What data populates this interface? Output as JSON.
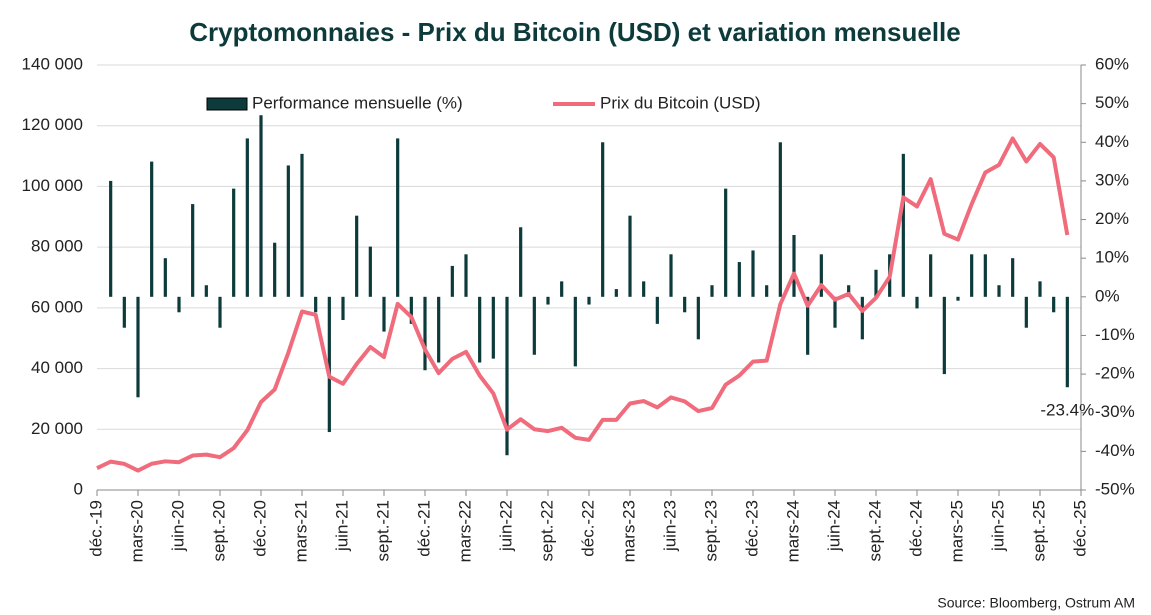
{
  "chart_data": {
    "type": "bar-line",
    "title": "Cryptomonnaies - Prix du Bitcoin (USD) et variation mensuelle",
    "source": "Source: Bloomberg,  Ostrum AM",
    "categories": [
      "déc.-19",
      null,
      null,
      "mars-20",
      null,
      null,
      "juin-20",
      null,
      null,
      "sept.-20",
      null,
      null,
      "déc.-20",
      null,
      null,
      "mars-21",
      null,
      null,
      "juin-21",
      null,
      null,
      "sept.-21",
      null,
      null,
      "déc.-21",
      null,
      null,
      "mars-22",
      null,
      null,
      "juin-22",
      null,
      null,
      "sept.-22",
      null,
      null,
      "déc.-22",
      null,
      null,
      "mars-23",
      null,
      null,
      "juin-23",
      null,
      null,
      "sept.-23",
      null,
      null,
      "déc.-23",
      null,
      null,
      "mars-24",
      null,
      null,
      "juin-24",
      null,
      null,
      "sept.-24",
      null,
      null,
      "déc.-24",
      null,
      null,
      "mars-25",
      null,
      null,
      "juin-25",
      null,
      null,
      "sept.-25",
      null,
      null,
      "déc.-25"
    ],
    "series": [
      {
        "name": "Performance mensuelle (%)",
        "type": "bar",
        "axis": "y2",
        "color": "#0d3b3b",
        "values": [
          null,
          30,
          -8,
          -26,
          35,
          10,
          -4,
          24,
          3,
          -8,
          28,
          41,
          47,
          14,
          34,
          37,
          -4,
          -35,
          -6,
          21,
          13,
          -9,
          41,
          -7,
          -19,
          -17,
          8,
          11,
          -17,
          -16,
          -41,
          18,
          -15,
          -2,
          4,
          -18,
          -2,
          40,
          2,
          21,
          4,
          -7,
          11,
          -4,
          -11,
          3,
          28,
          9,
          12,
          3,
          40,
          16,
          -15,
          11,
          -8,
          3,
          -11,
          7,
          11,
          37,
          -3,
          11,
          -20,
          -1,
          11,
          11,
          3,
          10,
          -8,
          4,
          -4,
          -23.4,
          null
        ],
        "value_labels": [
          null,
          null,
          null,
          null,
          null,
          null,
          null,
          null,
          null,
          null,
          null,
          null,
          null,
          null,
          null,
          null,
          null,
          null,
          null,
          null,
          null,
          null,
          null,
          null,
          null,
          null,
          null,
          null,
          null,
          null,
          null,
          null,
          null,
          null,
          null,
          null,
          null,
          null,
          null,
          null,
          null,
          null,
          null,
          null,
          null,
          null,
          null,
          null,
          null,
          null,
          null,
          null,
          null,
          null,
          null,
          null,
          null,
          null,
          null,
          null,
          null,
          null,
          null,
          null,
          null,
          null,
          null,
          null,
          null,
          null,
          null,
          "-23.4%",
          null
        ]
      },
      {
        "name": "Prix du Bitcoin (USD)",
        "type": "line",
        "color": "#f06b7c",
        "values": [
          7200,
          9350,
          8600,
          6400,
          8650,
          9450,
          9150,
          11350,
          11650,
          10800,
          13800,
          19700,
          29000,
          33100,
          45200,
          58800,
          57700,
          37300,
          35000,
          41500,
          47100,
          43800,
          61300,
          57000,
          46300,
          38500,
          43200,
          45500,
          37700,
          31800,
          19900,
          23300,
          20000,
          19400,
          20500,
          17200,
          16500,
          23100,
          23100,
          28500,
          29300,
          27200,
          30500,
          29200,
          26000,
          27000,
          34700,
          37700,
          42300,
          42600,
          61200,
          71300,
          60700,
          67500,
          62700,
          64600,
          59000,
          63300,
          70200,
          96400,
          93400,
          102400,
          84400,
          82500,
          94200,
          104600,
          107100,
          115800,
          108200,
          114000,
          109600,
          84000,
          null
        ]
      }
    ],
    "ylim": [
      0,
      140000
    ],
    "yticks": [
      {
        "value": 0,
        "label": "0"
      },
      {
        "value": 20000,
        "label": "20 000"
      },
      {
        "value": 40000,
        "label": "40 000"
      },
      {
        "value": 60000,
        "label": "60 000"
      },
      {
        "value": 80000,
        "label": "80 000"
      },
      {
        "value": 100000,
        "label": "100 000"
      },
      {
        "value": 120000,
        "label": "120 000"
      },
      {
        "value": 140000,
        "label": "140 000"
      }
    ],
    "y2lim": [
      -50,
      60
    ],
    "y2ticks": [
      {
        "value": -50,
        "label": "-50%"
      },
      {
        "value": -40,
        "label": "-40%"
      },
      {
        "value": -30,
        "label": "-30%"
      },
      {
        "value": -20,
        "label": "-20%"
      },
      {
        "value": -10,
        "label": "-10%"
      },
      {
        "value": 0,
        "label": "0%"
      },
      {
        "value": 10,
        "label": "10%"
      },
      {
        "value": 20,
        "label": "20%"
      },
      {
        "value": 30,
        "label": "30%"
      },
      {
        "value": 40,
        "label": "40%"
      },
      {
        "value": 50,
        "label": "50%"
      },
      {
        "value": 60,
        "label": "60%"
      }
    ],
    "grid": true
  }
}
